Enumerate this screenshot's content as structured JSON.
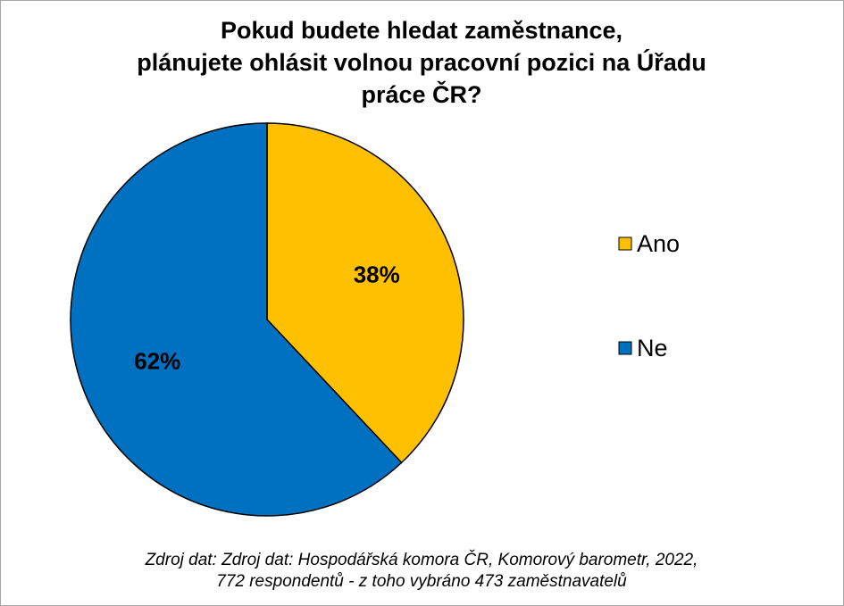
{
  "chart_data": {
    "type": "pie",
    "title": [
      "Pokud budete hledat zaměstnance,",
      "plánujete ohlásit volnou pracovní pozici na Úřadu",
      "práce ČR?"
    ],
    "categories": [
      "Ano",
      "Ne"
    ],
    "values": [
      38,
      62
    ],
    "value_labels": [
      "38%",
      "62%"
    ],
    "colors": [
      "#FFC000",
      "#0070C0"
    ],
    "legend": "right",
    "source": [
      "Zdroj dat: Zdroj dat: Hospodářská komora ČR, Komorový barometr, 2022,",
      "772 respondentů - z toho vybráno 473 zaměstnavatelů"
    ]
  }
}
